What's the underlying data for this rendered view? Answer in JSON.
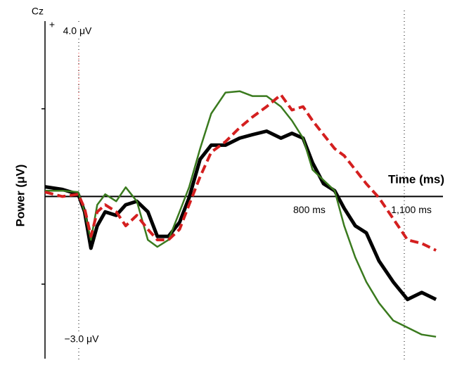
{
  "chart_data": {
    "type": "line",
    "annotations": {
      "channel": "Cz",
      "polarity": "+",
      "top_label": "4.0 μV",
      "bottom_label": "−3.0 μV"
    },
    "xlabel": "Time (ms)",
    "ylabel": "Power (μV)",
    "x": [
      -35,
      20,
      70,
      90,
      110,
      130,
      155,
      190,
      220,
      255,
      290,
      320,
      355,
      390,
      420,
      455,
      490,
      535,
      580,
      620,
      665,
      710,
      745,
      780,
      810,
      845,
      880,
      910,
      945,
      980,
      1020,
      1065,
      1110,
      1155,
      1200
    ],
    "series": [
      {
        "color": "#000000",
        "width": 5,
        "dashed": false,
        "values": [
          0.22,
          0.16,
          0.05,
          -0.35,
          -1.18,
          -0.67,
          -0.35,
          -0.43,
          -0.19,
          -0.11,
          -0.35,
          -0.91,
          -0.91,
          -0.59,
          -0.03,
          0.85,
          1.17,
          1.17,
          1.33,
          1.41,
          1.49,
          1.33,
          1.44,
          1.33,
          0.77,
          0.29,
          0.13,
          -0.27,
          -0.67,
          -0.83,
          -1.47,
          -1.95,
          -2.35,
          -2.19,
          -2.35
        ]
      },
      {
        "color": "#3a7a1e",
        "width": 2.5,
        "dashed": false,
        "values": [
          0.13,
          0.13,
          0.1,
          -0.35,
          -0.99,
          -0.19,
          0.05,
          -0.11,
          0.21,
          -0.11,
          -0.99,
          -1.15,
          -0.99,
          -0.35,
          0.21,
          1.09,
          1.89,
          2.37,
          2.4,
          2.29,
          2.29,
          2.05,
          1.73,
          1.33,
          0.61,
          0.37,
          0.13,
          -0.67,
          -1.39,
          -1.95,
          -2.43,
          -2.83,
          -2.99,
          -3.15,
          -3.2
        ]
      },
      {
        "color": "#d41f1f",
        "width": 4,
        "dashed": true,
        "values": [
          0.1,
          0,
          0.05,
          -0.27,
          -0.91,
          -0.35,
          -0.19,
          -0.35,
          -0.67,
          -0.43,
          -0.75,
          -0.99,
          -0.99,
          -0.75,
          -0.19,
          0.45,
          1.01,
          1.25,
          1.57,
          1.81,
          2.05,
          2.32,
          1.97,
          2.05,
          1.73,
          1.41,
          1.09,
          0.93,
          0.61,
          0.29,
          -0.03,
          -0.51,
          -0.99,
          -1.07,
          -1.23
        ]
      }
    ],
    "xlim": [
      -35,
      1222
    ],
    "ylim": [
      -3.7,
      4
    ],
    "xticks": [
      {
        "value": 800,
        "label": "800 ms"
      },
      {
        "value": 1100,
        "label": "1,100 ms"
      }
    ],
    "yticks": [
      -2,
      2
    ],
    "grid": false
  }
}
